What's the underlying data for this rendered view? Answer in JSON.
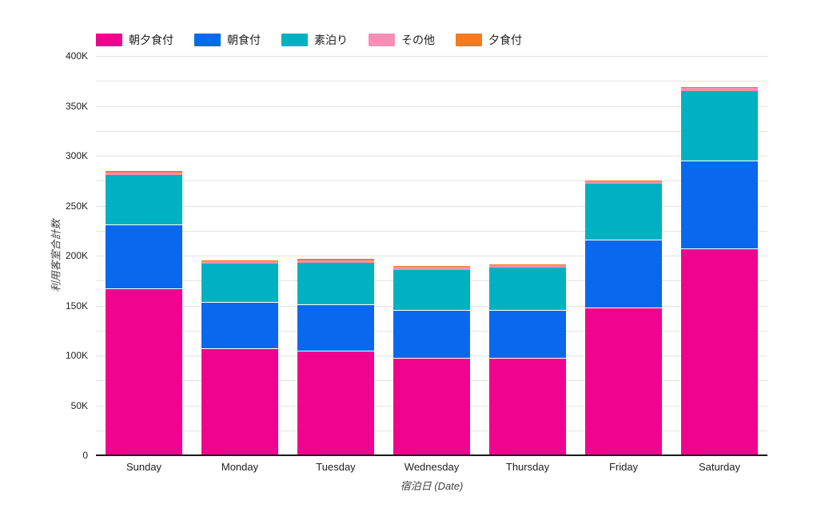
{
  "chart_data": {
    "type": "bar",
    "stacked": true,
    "title": "",
    "categories": [
      "Sunday",
      "Monday",
      "Tuesday",
      "Wednesday",
      "Thursday",
      "Friday",
      "Saturday"
    ],
    "series": [
      {
        "name": "朝夕食付",
        "color": "#F0038F",
        "values_k": [
          167,
          107,
          105,
          98,
          98,
          148,
          207
        ]
      },
      {
        "name": "朝食付",
        "color": "#0A68EE",
        "values_k": [
          64,
          47,
          46,
          48,
          48,
          68,
          88
        ]
      },
      {
        "name": "素泊り",
        "color": "#00B1C2",
        "values_k": [
          50,
          38,
          42,
          40,
          42,
          56,
          70
        ]
      },
      {
        "name": "その他",
        "color": "#F78FB4",
        "values_k": [
          2.5,
          2.5,
          2.5,
          2.5,
          2.5,
          2.5,
          3
        ]
      },
      {
        "name": "夕食付",
        "color": "#F5791D",
        "values_k": [
          1,
          1,
          1,
          1,
          1,
          1,
          1
        ]
      }
    ],
    "xlabel": "宿泊日 (Date)",
    "ylabel": "利用客室合計数",
    "ylim_k": [
      0,
      400
    ],
    "ytick_step_k": 50,
    "ytick_minor_step_k": 25,
    "ytick_labels": [
      "0",
      "50K",
      "100K",
      "150K",
      "200K",
      "250K",
      "300K",
      "350K",
      "400K"
    ],
    "legend_position": "top",
    "grid": true
  },
  "colors": {
    "gridline": "#e3e3e3",
    "axis_line": "#1a1a1a",
    "tick_text": "#212121",
    "axis_title_text": "#424242"
  }
}
